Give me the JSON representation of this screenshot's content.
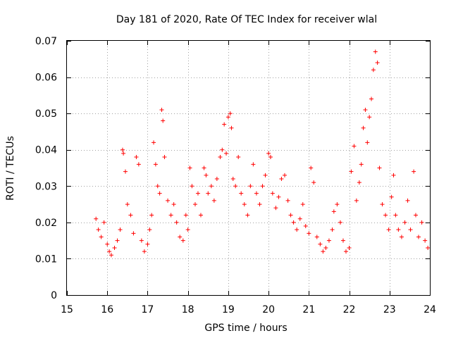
{
  "chart_data": {
    "type": "scatter",
    "title": "Day 181 of 2020, Rate Of TEC Index for receiver wlal",
    "xlabel": "GPS time / hours",
    "ylabel": "ROTI / TECUs",
    "xlim": [
      15,
      24
    ],
    "ylim": [
      0,
      0.07
    ],
    "x_ticks": [
      15,
      16,
      17,
      18,
      19,
      20,
      21,
      22,
      23,
      24
    ],
    "y_ticks": [
      0,
      0.01,
      0.02,
      0.03,
      0.04,
      0.05,
      0.06,
      0.07
    ],
    "x_tick_labels": [
      "15",
      "16",
      "17",
      "18",
      "19",
      "20",
      "21",
      "22",
      "23",
      "24"
    ],
    "y_tick_labels": [
      "0",
      "0.01",
      "0.02",
      "0.03",
      "0.04",
      "0.05",
      "0.06",
      "0.07"
    ],
    "grid": true,
    "marker": "plus",
    "color": "#ff0000",
    "series": [
      {
        "name": "ROTI",
        "x": [
          15.72,
          15.78,
          15.85,
          15.92,
          16.0,
          16.05,
          16.1,
          16.18,
          16.25,
          16.32,
          16.38,
          16.4,
          16.45,
          16.5,
          16.58,
          16.65,
          16.72,
          16.78,
          16.85,
          16.92,
          17.0,
          17.05,
          17.1,
          17.15,
          17.2,
          17.25,
          17.3,
          17.35,
          17.38,
          17.42,
          17.5,
          17.58,
          17.65,
          17.72,
          17.8,
          17.88,
          17.95,
          18.0,
          18.05,
          18.1,
          18.18,
          18.25,
          18.32,
          18.4,
          18.45,
          18.5,
          18.58,
          18.65,
          18.72,
          18.8,
          18.85,
          18.9,
          18.95,
          19.0,
          19.05,
          19.08,
          19.12,
          19.18,
          19.25,
          19.32,
          19.4,
          19.48,
          19.55,
          19.62,
          19.7,
          19.78,
          19.85,
          19.92,
          20.0,
          20.05,
          20.1,
          20.18,
          20.25,
          20.32,
          20.4,
          20.48,
          20.55,
          20.62,
          20.7,
          20.78,
          20.85,
          20.92,
          21.0,
          21.05,
          21.12,
          21.2,
          21.28,
          21.35,
          21.42,
          21.5,
          21.58,
          21.62,
          21.7,
          21.78,
          21.85,
          21.92,
          22.0,
          22.05,
          22.12,
          22.18,
          22.25,
          22.3,
          22.35,
          22.4,
          22.45,
          22.5,
          22.55,
          22.6,
          22.65,
          22.7,
          22.75,
          22.82,
          22.9,
          22.98,
          23.05,
          23.1,
          23.15,
          23.22,
          23.3,
          23.38,
          23.45,
          23.52,
          23.6,
          23.65,
          23.72,
          23.8,
          23.88,
          23.95
        ],
        "y": [
          0.021,
          0.018,
          0.016,
          0.02,
          0.014,
          0.012,
          0.011,
          0.013,
          0.015,
          0.018,
          0.04,
          0.039,
          0.034,
          0.025,
          0.022,
          0.017,
          0.038,
          0.036,
          0.015,
          0.012,
          0.014,
          0.018,
          0.022,
          0.042,
          0.036,
          0.03,
          0.028,
          0.051,
          0.048,
          0.038,
          0.026,
          0.022,
          0.025,
          0.02,
          0.016,
          0.015,
          0.022,
          0.018,
          0.035,
          0.03,
          0.025,
          0.028,
          0.022,
          0.035,
          0.033,
          0.028,
          0.03,
          0.026,
          0.032,
          0.038,
          0.04,
          0.047,
          0.039,
          0.049,
          0.05,
          0.046,
          0.032,
          0.03,
          0.038,
          0.028,
          0.025,
          0.022,
          0.03,
          0.036,
          0.028,
          0.025,
          0.03,
          0.033,
          0.039,
          0.038,
          0.028,
          0.024,
          0.027,
          0.032,
          0.033,
          0.026,
          0.022,
          0.02,
          0.018,
          0.021,
          0.025,
          0.019,
          0.017,
          0.035,
          0.031,
          0.016,
          0.014,
          0.012,
          0.013,
          0.015,
          0.018,
          0.023,
          0.025,
          0.02,
          0.015,
          0.012,
          0.013,
          0.034,
          0.041,
          0.026,
          0.031,
          0.036,
          0.046,
          0.051,
          0.042,
          0.049,
          0.054,
          0.062,
          0.067,
          0.064,
          0.035,
          0.025,
          0.022,
          0.018,
          0.027,
          0.033,
          0.022,
          0.018,
          0.016,
          0.02,
          0.026,
          0.018,
          0.034,
          0.022,
          0.016,
          0.02,
          0.015,
          0.013
        ]
      }
    ]
  }
}
